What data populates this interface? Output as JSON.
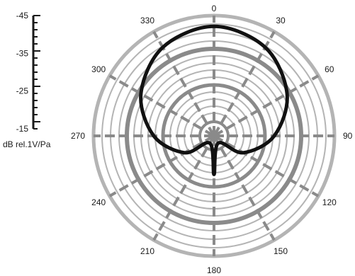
{
  "chart_data": {
    "type": "polar",
    "angle_labels": [
      "0",
      "30",
      "60",
      "90",
      "120",
      "150",
      "180",
      "210",
      "240",
      "270",
      "300",
      "330"
    ],
    "scale": {
      "unit_label": "dB rel.1V/Pa",
      "ticks": [
        "-45",
        "-35",
        "-25",
        "-15"
      ],
      "range": [
        -45,
        -15
      ]
    },
    "grid": true,
    "series": [
      {
        "pattern": "supercardioid",
        "color": "#111111",
        "points": [
          {
            "angle": 0,
            "r": 0.91
          },
          {
            "angle": 30,
            "r": 0.85
          },
          {
            "angle": 60,
            "r": 0.7
          },
          {
            "angle": 90,
            "r": 0.5
          },
          {
            "angle": 120,
            "r": 0.28
          },
          {
            "angle": 150,
            "r": 0.07
          },
          {
            "angle": 180,
            "r": 0.32
          },
          {
            "angle": 210,
            "r": 0.07
          },
          {
            "angle": 240,
            "r": 0.28
          },
          {
            "angle": 270,
            "r": 0.5
          },
          {
            "angle": 300,
            "r": 0.7
          },
          {
            "angle": 330,
            "r": 0.85
          }
        ]
      }
    ],
    "colors": {
      "grid_light": "#b4b4b4",
      "grid_dark": "#8a8a8a",
      "trace": "#111111"
    }
  }
}
